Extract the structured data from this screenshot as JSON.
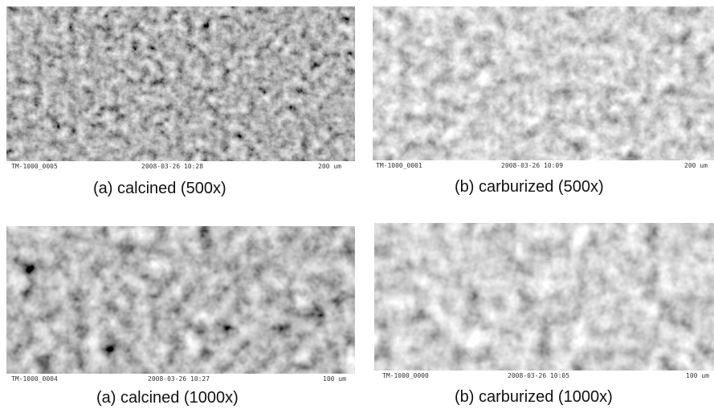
{
  "panels": [
    {
      "id": "tl",
      "image_id": "TM-1000_0005",
      "datetime": "2008-03-26   10:28",
      "scale": "200 um",
      "caption": "(a) calcined (500x)"
    },
    {
      "id": "tr",
      "image_id": "TM-1000_0001",
      "datetime": "2008-03-26   10:09",
      "scale": "200 um",
      "caption": "(b) carburized (500x)"
    },
    {
      "id": "bl",
      "image_id": "TM-1000_0004",
      "datetime": "2008-03-26   10:27",
      "scale": "100 um",
      "caption": "(a) calcined (1000x)"
    },
    {
      "id": "br",
      "image_id": "TM-1000_0000",
      "datetime": "2008-03-26   10:05",
      "scale": "100 um",
      "caption": "(b) carburized (1000x)"
    }
  ]
}
